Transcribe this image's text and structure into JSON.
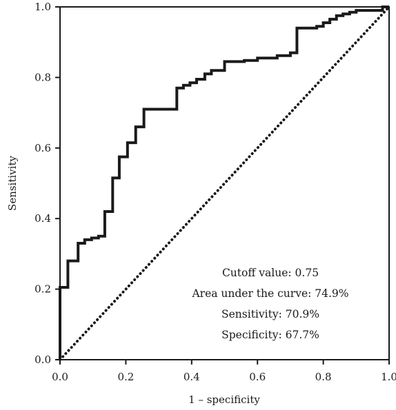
{
  "chart_data": {
    "type": "line",
    "xlabel": "1 – specificity",
    "ylabel": "Sensitivity",
    "xlim": [
      0,
      1
    ],
    "ylim": [
      0,
      1
    ],
    "x_ticks": [
      "0.0",
      "0.2",
      "0.4",
      "0.6",
      "0.8",
      "1.0"
    ],
    "y_ticks": [
      "0.0",
      "0.2",
      "0.4",
      "0.6",
      "0.8",
      "1.0"
    ],
    "grid": false,
    "series": [
      {
        "style": "solid-step",
        "color": "#1a1a1a",
        "x": [
          0.0,
          0.0,
          0.024,
          0.024,
          0.055,
          0.055,
          0.075,
          0.075,
          0.096,
          0.096,
          0.117,
          0.117,
          0.136,
          0.136,
          0.16,
          0.16,
          0.18,
          0.18,
          0.205,
          0.205,
          0.23,
          0.23,
          0.255,
          0.255,
          0.275,
          0.275,
          0.355,
          0.355,
          0.375,
          0.375,
          0.395,
          0.395,
          0.415,
          0.415,
          0.44,
          0.44,
          0.46,
          0.46,
          0.5,
          0.5,
          0.56,
          0.56,
          0.6,
          0.6,
          0.66,
          0.66,
          0.7,
          0.7,
          0.72,
          0.72,
          0.78,
          0.78,
          0.8,
          0.8,
          0.82,
          0.82,
          0.84,
          0.84,
          0.86,
          0.86,
          0.88,
          0.88,
          0.9,
          0.9,
          0.98,
          0.98,
          1.0
        ],
        "y": [
          0.0,
          0.205,
          0.205,
          0.28,
          0.28,
          0.33,
          0.33,
          0.34,
          0.34,
          0.345,
          0.345,
          0.35,
          0.35,
          0.42,
          0.42,
          0.515,
          0.515,
          0.575,
          0.575,
          0.615,
          0.615,
          0.66,
          0.66,
          0.71,
          0.71,
          0.71,
          0.71,
          0.77,
          0.77,
          0.778,
          0.778,
          0.785,
          0.785,
          0.795,
          0.795,
          0.81,
          0.81,
          0.82,
          0.82,
          0.845,
          0.845,
          0.848,
          0.848,
          0.855,
          0.855,
          0.862,
          0.862,
          0.87,
          0.87,
          0.94,
          0.94,
          0.945,
          0.945,
          0.955,
          0.955,
          0.965,
          0.965,
          0.975,
          0.975,
          0.98,
          0.98,
          0.985,
          0.985,
          0.99,
          0.99,
          1.0,
          1.0
        ]
      },
      {
        "style": "dotted-reference",
        "color": "#1a1a1a",
        "x": [
          0,
          1
        ],
        "y": [
          0,
          1
        ]
      }
    ],
    "annotations": [
      "Cutoff value: 0.75",
      "Area under the curve: 74.9%",
      "Sensitivity: 70.9%",
      "Specificity: 67.7%"
    ]
  }
}
